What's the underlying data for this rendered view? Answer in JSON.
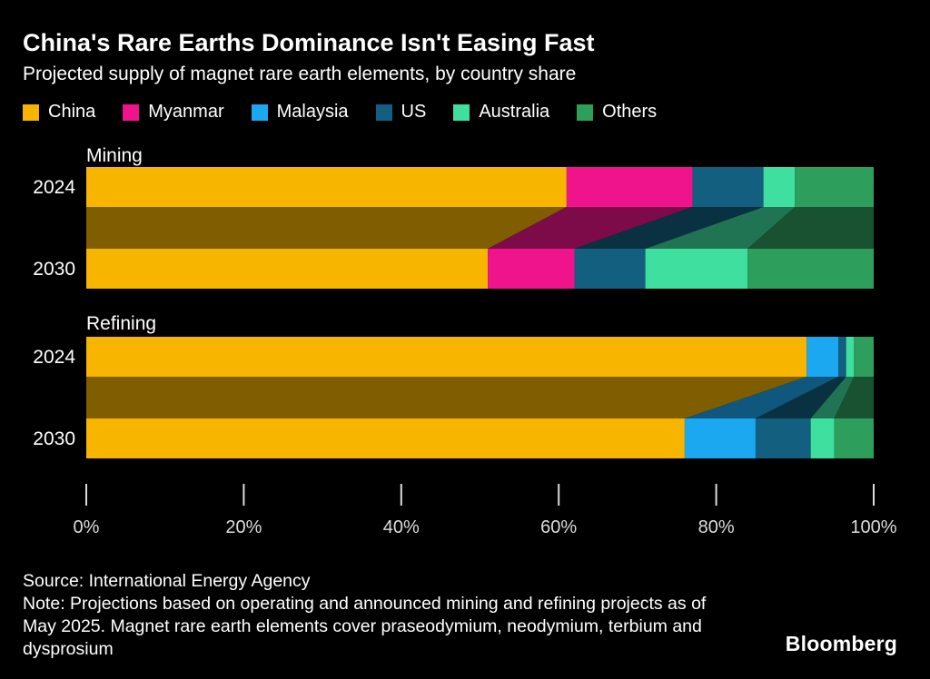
{
  "header": {
    "title": "China's Rare Earths Dominance Isn't Easing Fast",
    "subtitle": "Projected supply of magnet rare earth elements, by country share"
  },
  "chart_data": {
    "type": "bar",
    "orientation": "horizontal",
    "stacked": true,
    "unit": "%",
    "xlim": [
      0,
      100
    ],
    "x_ticks": [
      "0%",
      "20%",
      "40%",
      "60%",
      "80%",
      "100%"
    ],
    "legend_position": "top",
    "grid": false,
    "legend": [
      {
        "name": "China",
        "color": "#F7B500"
      },
      {
        "name": "Myanmar",
        "color": "#F0148C"
      },
      {
        "name": "Malaysia",
        "color": "#1CA8F0"
      },
      {
        "name": "US",
        "color": "#135F7F"
      },
      {
        "name": "Australia",
        "color": "#3FDF9F"
      },
      {
        "name": "Others",
        "color": "#2E9E5C"
      }
    ],
    "groups": [
      {
        "label": "Mining",
        "bars": [
          {
            "label": "2024",
            "values": {
              "China": 61,
              "Myanmar": 16,
              "Malaysia": 0,
              "US": 9,
              "Australia": 4,
              "Others": 10
            }
          },
          {
            "label": "2030",
            "values": {
              "China": 51,
              "Myanmar": 11,
              "Malaysia": 0,
              "US": 9,
              "Australia": 13,
              "Others": 16
            }
          }
        ]
      },
      {
        "label": "Refining",
        "bars": [
          {
            "label": "2024",
            "values": {
              "China": 91.5,
              "Myanmar": 0,
              "Malaysia": 4,
              "US": 1,
              "Australia": 1,
              "Others": 2.5
            }
          },
          {
            "label": "2030",
            "values": {
              "China": 76,
              "Myanmar": 0,
              "Malaysia": 9,
              "US": 7,
              "Australia": 3,
              "Others": 5
            }
          }
        ]
      }
    ]
  },
  "footer": {
    "source": "Source: International Energy Agency",
    "note": "Note: Projections based on operating and announced mining and refining projects as of May 2025. Magnet rare earth elements cover praseodymium, neodymium, terbium and dysprosium",
    "brand": "Bloomberg"
  }
}
